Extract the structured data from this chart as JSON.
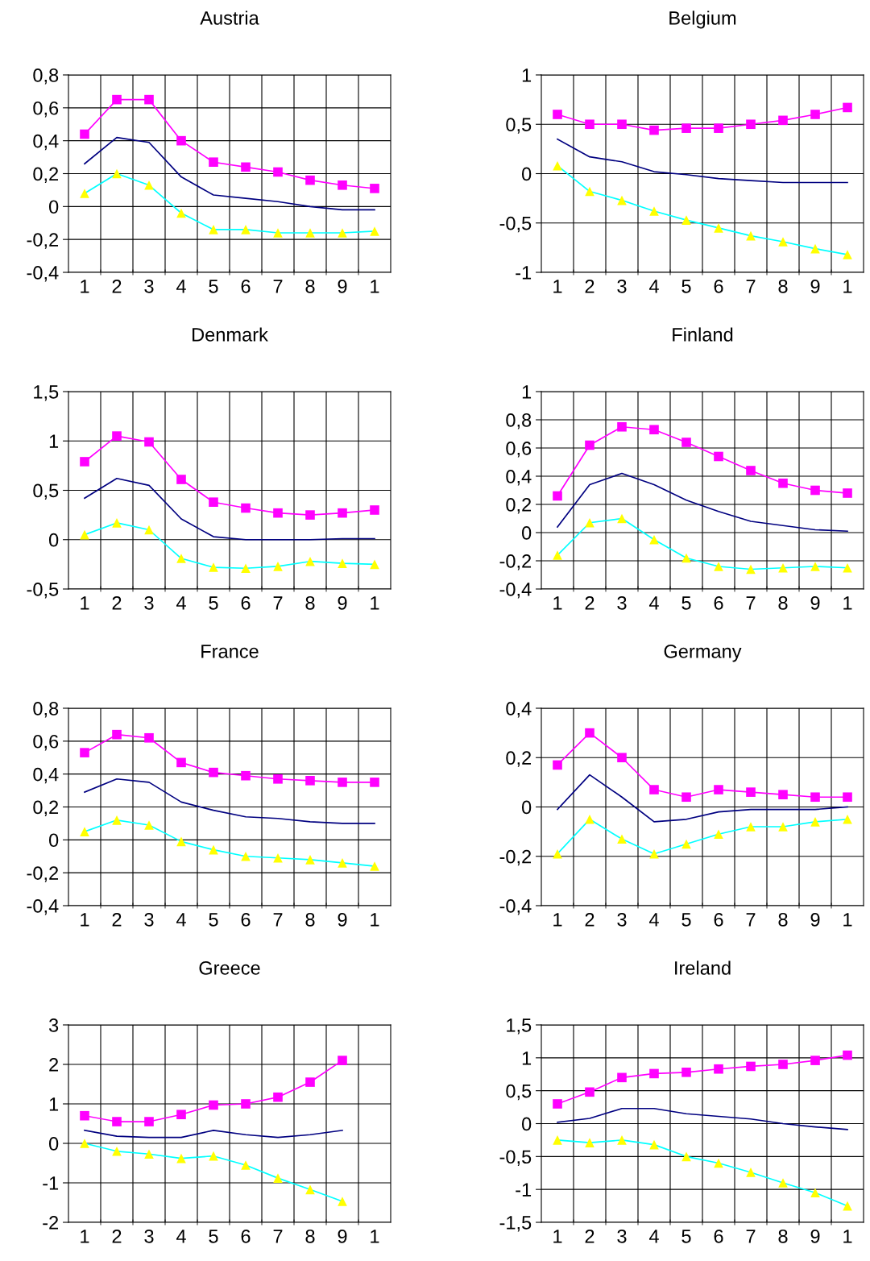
{
  "chart_data": [
    {
      "type": "line",
      "title": "Austria",
      "categories": [
        "1",
        "2",
        "3",
        "4",
        "5",
        "6",
        "7",
        "8",
        "9",
        "1"
      ],
      "ylim": [
        -0.4,
        0.8
      ],
      "yticks": [
        {
          "value": -0.4,
          "label": "-0,4"
        },
        {
          "value": -0.2,
          "label": "-0,2"
        },
        0,
        {
          "value": 0.2,
          "label": "0,2"
        },
        {
          "value": 0.4,
          "label": "0,4"
        },
        {
          "value": 0.6,
          "label": "0,6"
        },
        {
          "value": 0.8,
          "label": "0,8"
        }
      ],
      "grid": true,
      "series": [
        {
          "color": "#ff00ff",
          "marker": "square",
          "values": [
            0.44,
            0.65,
            0.65,
            0.4,
            0.27,
            0.24,
            0.21,
            0.16,
            0.13,
            0.11
          ]
        },
        {
          "color": "#000080",
          "values": [
            0.26,
            0.42,
            0.39,
            0.18,
            0.07,
            0.05,
            0.03,
            0.0,
            -0.02,
            -0.02
          ]
        },
        {
          "color": "#00ffff",
          "marker": "triangle",
          "colors": [
            "#ffff00",
            "#ffff00",
            "#ffff00",
            "#ffff00",
            "#ffff00",
            "#ffff00",
            "#ffff00",
            "#ffff00",
            "#ffff00",
            "#ffff00"
          ],
          "values": [
            0.08,
            0.2,
            0.13,
            -0.04,
            -0.14,
            -0.14,
            -0.16,
            -0.16,
            -0.16,
            -0.15
          ]
        }
      ]
    },
    {
      "type": "line",
      "title": "Belgium",
      "categories": [
        "1",
        "2",
        "3",
        "4",
        "5",
        "6",
        "7",
        "8",
        "9",
        "1"
      ],
      "ylim": [
        -1,
        1
      ],
      "yticks": [
        -1,
        {
          "value": -0.5,
          "label": "-0,5"
        },
        0,
        {
          "value": 0.5,
          "label": "0,5"
        },
        1
      ],
      "grid": true,
      "series": [
        {
          "color": "#ff00ff",
          "marker": "square",
          "values": [
            0.6,
            0.5,
            0.5,
            0.44,
            0.46,
            0.46,
            0.5,
            0.54,
            0.6,
            0.67
          ]
        },
        {
          "color": "#000080",
          "values": [
            0.35,
            0.17,
            0.12,
            0.02,
            -0.01,
            -0.05,
            -0.07,
            -0.09,
            -0.09,
            -0.09
          ]
        },
        {
          "color": "#00ffff",
          "marker": "triangle",
          "colors": [
            "#ffff00",
            "#ffff00",
            "#ffff00",
            "#ffff00",
            "#ffff00",
            "#ffff00",
            "#ffff00",
            "#ffff00",
            "#ffff00",
            "#ffff00"
          ],
          "values": [
            0.08,
            -0.18,
            -0.27,
            -0.38,
            -0.47,
            -0.55,
            -0.63,
            -0.69,
            -0.76,
            -0.82
          ]
        }
      ]
    },
    {
      "type": "line",
      "title": "Denmark",
      "categories": [
        "1",
        "2",
        "3",
        "4",
        "5",
        "6",
        "7",
        "8",
        "9",
        "1"
      ],
      "ylim": [
        -0.5,
        1.5
      ],
      "yticks": [
        {
          "value": -0.5,
          "label": "-0,5"
        },
        0,
        {
          "value": 0.5,
          "label": "0,5"
        },
        1,
        {
          "value": 1.5,
          "label": "1,5"
        }
      ],
      "grid": true,
      "series": [
        {
          "color": "#ff00ff",
          "marker": "square",
          "values": [
            0.79,
            1.05,
            0.99,
            0.61,
            0.38,
            0.32,
            0.27,
            0.25,
            0.27,
            0.3
          ]
        },
        {
          "color": "#000080",
          "values": [
            0.42,
            0.62,
            0.55,
            0.21,
            0.03,
            0.0,
            0.0,
            0.0,
            0.01,
            0.01
          ]
        },
        {
          "color": "#00ffff",
          "marker": "triangle",
          "colors": [
            "#ffff00",
            "#ffff00",
            "#ffff00",
            "#ffff00",
            "#ffff00",
            "#ffff00",
            "#ffff00",
            "#ffff00",
            "#ffff00",
            "#ffff00"
          ],
          "values": [
            0.05,
            0.17,
            0.1,
            -0.19,
            -0.28,
            -0.29,
            -0.27,
            -0.22,
            -0.24,
            -0.25
          ]
        }
      ]
    },
    {
      "type": "line",
      "title": "Finland",
      "categories": [
        "1",
        "2",
        "3",
        "4",
        "5",
        "6",
        "7",
        "8",
        "9",
        "1"
      ],
      "ylim": [
        -0.4,
        1
      ],
      "yticks": [
        {
          "value": -0.4,
          "label": "-0,4"
        },
        {
          "value": -0.2,
          "label": "-0,2"
        },
        0,
        {
          "value": 0.2,
          "label": "0,2"
        },
        {
          "value": 0.4,
          "label": "0,4"
        },
        {
          "value": 0.6,
          "label": "0,6"
        },
        {
          "value": 0.8,
          "label": "0,8"
        },
        1
      ],
      "grid": true,
      "series": [
        {
          "color": "#ff00ff",
          "marker": "square",
          "values": [
            0.26,
            0.62,
            0.75,
            0.73,
            0.64,
            0.54,
            0.44,
            0.35,
            0.3,
            0.28
          ]
        },
        {
          "color": "#000080",
          "values": [
            0.04,
            0.34,
            0.42,
            0.34,
            0.23,
            0.15,
            0.08,
            0.05,
            0.02,
            0.01
          ]
        },
        {
          "color": "#00ffff",
          "marker": "triangle",
          "colors": [
            "#ffff00",
            "#ffff00",
            "#ffff00",
            "#ffff00",
            "#ffff00",
            "#ffff00",
            "#ffff00",
            "#ffff00",
            "#ffff00",
            "#ffff00"
          ],
          "values": [
            -0.16,
            0.07,
            0.1,
            -0.05,
            -0.18,
            -0.24,
            -0.26,
            -0.25,
            -0.24,
            -0.25
          ]
        }
      ]
    },
    {
      "type": "line",
      "title": "France",
      "categories": [
        "1",
        "2",
        "3",
        "4",
        "5",
        "6",
        "7",
        "8",
        "9",
        "1"
      ],
      "ylim": [
        -0.4,
        0.8
      ],
      "yticks": [
        {
          "value": -0.4,
          "label": "-0,4"
        },
        {
          "value": -0.2,
          "label": "-0,2"
        },
        0,
        {
          "value": 0.2,
          "label": "0,2"
        },
        {
          "value": 0.4,
          "label": "0,4"
        },
        {
          "value": 0.6,
          "label": "0,6"
        },
        {
          "value": 0.8,
          "label": "0,8"
        }
      ],
      "grid": true,
      "series": [
        {
          "color": "#ff00ff",
          "marker": "square",
          "values": [
            0.53,
            0.64,
            0.62,
            0.47,
            0.41,
            0.39,
            0.37,
            0.36,
            0.35,
            0.35
          ]
        },
        {
          "color": "#000080",
          "values": [
            0.29,
            0.37,
            0.35,
            0.23,
            0.18,
            0.14,
            0.13,
            0.11,
            0.1,
            0.1
          ]
        },
        {
          "color": "#00ffff",
          "marker": "triangle",
          "colors": [
            "#ffff00",
            "#ffff00",
            "#ffff00",
            "#ffff00",
            "#ffff00",
            "#ffff00",
            "#ffff00",
            "#ffff00",
            "#ffff00",
            "#ffff00"
          ],
          "values": [
            0.05,
            0.12,
            0.09,
            -0.01,
            -0.06,
            -0.1,
            -0.11,
            -0.12,
            -0.14,
            -0.16
          ]
        }
      ]
    },
    {
      "type": "line",
      "title": "Germany",
      "categories": [
        "1",
        "2",
        "3",
        "4",
        "5",
        "6",
        "7",
        "8",
        "9",
        "1"
      ],
      "ylim": [
        -0.4,
        0.4
      ],
      "yticks": [
        {
          "value": -0.4,
          "label": "-0,4"
        },
        {
          "value": -0.2,
          "label": "-0,2"
        },
        0,
        {
          "value": 0.2,
          "label": "0,2"
        },
        {
          "value": 0.4,
          "label": "0,4"
        }
      ],
      "grid": true,
      "series": [
        {
          "color": "#ff00ff",
          "marker": "square",
          "values": [
            0.17,
            0.3,
            0.2,
            0.07,
            0.04,
            0.07,
            0.06,
            0.05,
            0.04,
            0.04
          ]
        },
        {
          "color": "#000080",
          "values": [
            -0.01,
            0.13,
            0.04,
            -0.06,
            -0.05,
            -0.02,
            -0.01,
            -0.01,
            -0.01,
            0.0
          ]
        },
        {
          "color": "#00ffff",
          "marker": "triangle",
          "colors": [
            "#ffff00",
            "#ffff00",
            "#ffff00",
            "#ffff00",
            "#ffff00",
            "#ffff00",
            "#ffff00",
            "#ffff00",
            "#ffff00",
            "#ffff00"
          ],
          "values": [
            -0.19,
            -0.05,
            -0.13,
            -0.19,
            -0.15,
            -0.11,
            -0.08,
            -0.08,
            -0.06,
            -0.05
          ]
        }
      ]
    },
    {
      "type": "line",
      "title": "Greece",
      "categories": [
        "1",
        "2",
        "3",
        "4",
        "5",
        "6",
        "7",
        "8",
        "9",
        "1"
      ],
      "ylim": [
        -2,
        3
      ],
      "yticks": [
        -2,
        -1,
        0,
        1,
        2,
        3
      ],
      "grid": true,
      "series": [
        {
          "color": "#ff00ff",
          "marker": "square",
          "values": [
            0.7,
            0.55,
            0.55,
            0.73,
            0.97,
            1.0,
            1.17,
            1.55,
            2.1,
            null
          ]
        },
        {
          "color": "#000080",
          "values": [
            0.33,
            0.18,
            0.15,
            0.15,
            0.33,
            0.22,
            0.15,
            0.22,
            0.33,
            null
          ]
        },
        {
          "color": "#00ffff",
          "marker": "triangle",
          "colors": [
            "#ffff00",
            "#ffff00",
            "#ffff00",
            "#ffff00",
            "#ffff00",
            "#ffff00",
            "#ffff00",
            "#ffff00",
            "#ffff00",
            "#ffff00"
          ],
          "values": [
            0.0,
            -0.2,
            -0.27,
            -0.38,
            -0.32,
            -0.55,
            -0.88,
            -1.17,
            -1.47,
            null
          ]
        }
      ]
    },
    {
      "type": "line",
      "title": "Ireland",
      "categories": [
        "1",
        "2",
        "3",
        "4",
        "5",
        "6",
        "7",
        "8",
        "9",
        "1"
      ],
      "ylim": [
        -1.5,
        1.5
      ],
      "yticks": [
        {
          "value": -1.5,
          "label": "-1,5"
        },
        -1,
        {
          "value": -0.5,
          "label": "-0,5"
        },
        0,
        {
          "value": 0.5,
          "label": "0,5"
        },
        1,
        {
          "value": 1.5,
          "label": "1,5"
        }
      ],
      "grid": true,
      "series": [
        {
          "color": "#ff00ff",
          "marker": "square",
          "values": [
            0.3,
            0.48,
            0.7,
            0.76,
            0.78,
            0.83,
            0.87,
            0.9,
            0.96,
            1.04
          ]
        },
        {
          "color": "#000080",
          "values": [
            0.02,
            0.08,
            0.23,
            0.23,
            0.15,
            0.11,
            0.07,
            0.0,
            -0.05,
            -0.09
          ]
        },
        {
          "color": "#00ffff",
          "marker": "triangle",
          "colors": [
            "#ffff00",
            "#ffff00",
            "#ffff00",
            "#ffff00",
            "#ffff00",
            "#ffff00",
            "#ffff00",
            "#ffff00",
            "#ffff00",
            "#ffff00"
          ],
          "values": [
            -0.25,
            -0.29,
            -0.25,
            -0.32,
            -0.5,
            -0.6,
            -0.74,
            -0.9,
            -1.05,
            -1.25
          ]
        }
      ]
    }
  ]
}
